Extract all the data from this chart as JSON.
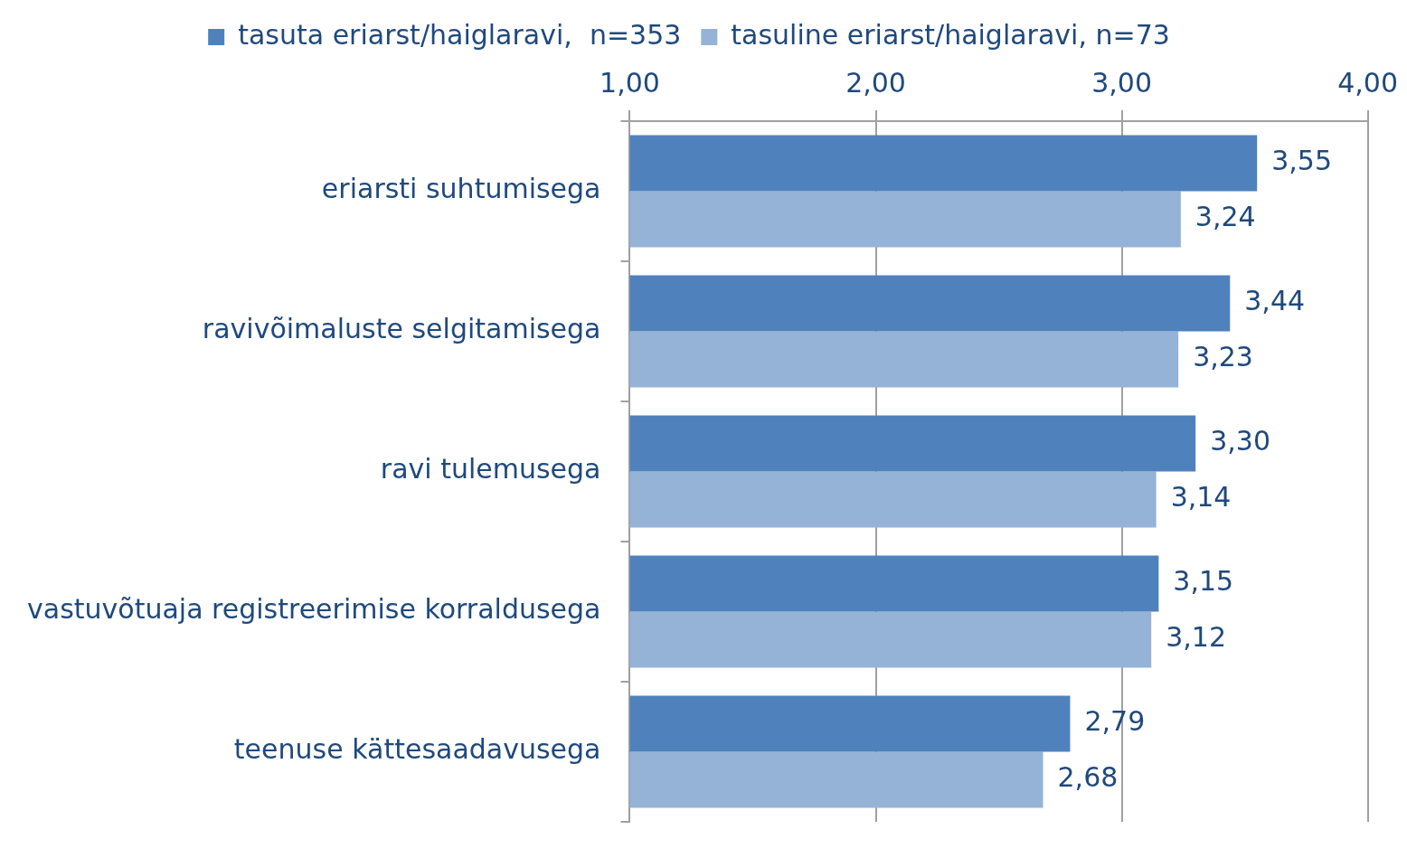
{
  "chart_data": {
    "type": "bar",
    "orientation": "horizontal",
    "categories": [
      "eriarsti suhtumisega",
      "ravivõimaluste selgitamisega",
      "ravi tulemusega",
      "vastuvõtuaja registreerimise korraldusega",
      "teenuse kättesaadavusega"
    ],
    "series": [
      {
        "name": "tasuta eriarst/haiglaravi,  n=353",
        "color": "#4f81bd",
        "values": [
          3.55,
          3.44,
          3.3,
          3.15,
          2.79
        ],
        "value_labels": [
          "3,55",
          "3,44",
          "3,30",
          "3,15",
          "2,79"
        ]
      },
      {
        "name": "tasuline eriarst/haiglaravi, n=73",
        "color": "#95b3d7",
        "values": [
          3.24,
          3.23,
          3.14,
          3.12,
          2.68
        ],
        "value_labels": [
          "3,24",
          "3,23",
          "3,14",
          "3,12",
          "2,68"
        ]
      }
    ],
    "xlim": [
      1,
      4
    ],
    "xticks": [
      {
        "value": 1,
        "label": "1,00"
      },
      {
        "value": 2,
        "label": "2,00"
      },
      {
        "value": 3,
        "label": "3,00"
      },
      {
        "value": 4,
        "label": "4,00"
      }
    ],
    "grid": "x",
    "legend": "top"
  }
}
